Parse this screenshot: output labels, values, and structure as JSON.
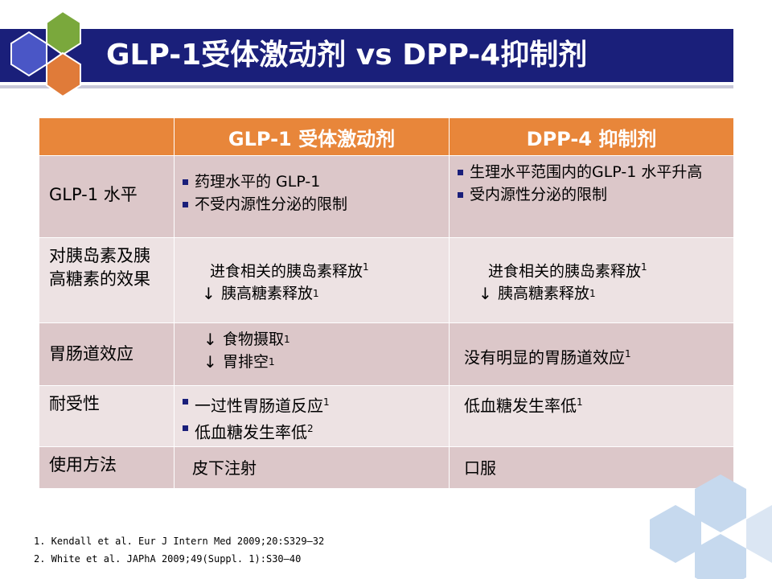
{
  "slide": {
    "title": "GLP-1受体激动剂 vs DPP-4抑制剂",
    "colors": {
      "title_bar": "#1a1f7a",
      "header": "#e8863a",
      "row_dark": "#dcc7c9",
      "row_light": "#ede2e3",
      "hex_blue": "#4a56c6",
      "hex_green": "#7aa83c",
      "hex_orange": "#e07b39",
      "hex_light": "#c6d9ee"
    },
    "icons": [
      "hexagon-cluster-icon",
      "hexagon-decoration-icon"
    ]
  },
  "table": {
    "headers": [
      "",
      "GLP-1 受体激动剂",
      "DPP-4 抑制剂"
    ],
    "rows": [
      {
        "label": "GLP-1 水平",
        "glp1": [
          "药理水平的 GLP-1",
          "不受内源性分泌的限制"
        ],
        "dpp4": [
          "生理水平范围内的GLP-1 水平升高",
          "受内源性分泌的限制"
        ]
      },
      {
        "label": "对胰岛素及胰高糖素的效果",
        "glp1": {
          "line1": "进食相关的胰岛素释放",
          "sup1": "1",
          "line2": "胰高糖素释放",
          "sup2": "1"
        },
        "dpp4": {
          "line1": "进食相关的胰岛素释放",
          "sup1": "1",
          "line2": "胰高糖素释放",
          "sup2": "1"
        }
      },
      {
        "label": "胃肠道效应",
        "glp1": {
          "line1": "食物摄取",
          "sup1": "1",
          "line2": "胃排空",
          "sup2": "1"
        },
        "dpp4": {
          "text": "没有明显的胃肠道效应",
          "sup": "1"
        }
      },
      {
        "label": "耐受性",
        "glp1": [
          {
            "text": "一过性胃肠道反应",
            "sup": "1"
          },
          {
            "text": "低血糖发生率低",
            "sup": "2"
          }
        ],
        "dpp4": {
          "text": "低血糖发生率低",
          "sup": "1"
        }
      },
      {
        "label": "使用方法",
        "glp1": "皮下注射",
        "dpp4": "口服"
      }
    ]
  },
  "references": [
    "1. Kendall et al. Eur J Intern Med 2009;20:S329–32",
    "2. White et al. JAPhA 2009;49(Suppl. 1):S30–40"
  ]
}
